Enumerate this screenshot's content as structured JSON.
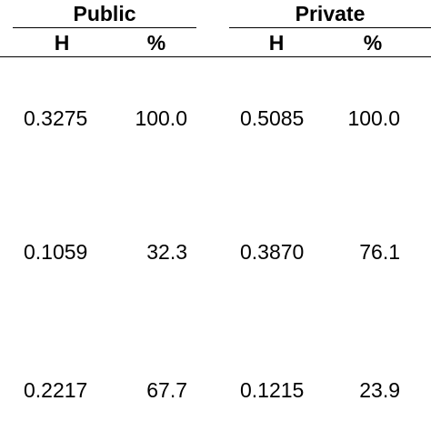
{
  "groups": {
    "public": "Public",
    "private": "Private"
  },
  "columns": [
    "H",
    "%",
    "H",
    "%"
  ],
  "rows": [
    {
      "public_h": "0.3275",
      "public_pct": "100.0",
      "private_h": "0.5085",
      "private_pct": "100.0"
    },
    {
      "public_h": "0.1059",
      "public_pct": "32.3",
      "private_h": "0.3870",
      "private_pct": "76.1"
    },
    {
      "public_h": "0.2217",
      "public_pct": "67.7",
      "private_h": "0.1215",
      "private_pct": "23.9"
    }
  ]
}
